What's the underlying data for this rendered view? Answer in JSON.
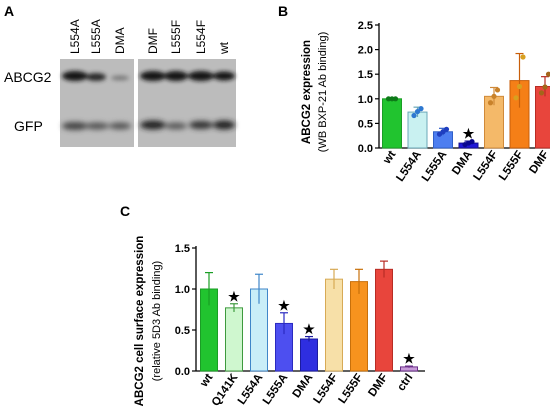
{
  "panels": {
    "a": "A",
    "b": "B",
    "c": "C"
  },
  "blot": {
    "lanes_left": [
      "L554A",
      "L555A",
      "DMA"
    ],
    "lanes_right": [
      "DMF",
      "L555F",
      "L554F",
      "wt"
    ],
    "row_labels": [
      "ABCG2",
      "GFP"
    ]
  },
  "chart_data": [
    {
      "type": "bar",
      "panel": "B",
      "ylabel": "ABCG2 expression",
      "ylabel2": "(WB BXP-21 Ab binding)",
      "categories": [
        "wt",
        "L554A",
        "L555A",
        "DMA",
        "L554F",
        "L555F",
        "DMF"
      ],
      "values": [
        1.0,
        0.73,
        0.33,
        0.1,
        1.05,
        1.37,
        1.25
      ],
      "errors": [
        0.02,
        0.1,
        0.07,
        0.04,
        0.18,
        0.55,
        0.2
      ],
      "points": [
        [
          1.0,
          1.0,
          1.0
        ],
        [
          0.66,
          0.74,
          0.8
        ],
        [
          0.28,
          0.33,
          0.38
        ],
        [
          0.07,
          0.1,
          0.13
        ],
        [
          0.92,
          1.05,
          1.18
        ],
        [
          1.02,
          1.25,
          1.85
        ],
        [
          1.12,
          1.24,
          1.5
        ]
      ],
      "significant": [
        false,
        false,
        false,
        true,
        false,
        false,
        false
      ],
      "ylim": [
        0,
        2.5
      ],
      "yticks": [
        "0.0",
        "0.5",
        "1.0",
        "1.5",
        "2.0",
        "2.5"
      ],
      "colors": [
        "#21c42f",
        "#c9f1f1",
        "#4d7ef0",
        "#2018d8",
        "#f4b969",
        "#f57f17",
        "#e8453c"
      ],
      "edges": [
        "#1a9e25",
        "#6aa8b8",
        "#2f5fc8",
        "#14108f",
        "#d08a3a",
        "#c85e0a",
        "#b82c24"
      ],
      "point_colors": [
        "#0d7a18",
        "#2d78d0",
        "#1f3fc0",
        "#0a088f",
        "#c9822a",
        "#d8a020",
        "#a3651a"
      ]
    },
    {
      "type": "bar",
      "panel": "C",
      "ylabel": "ABCG2 cell surface expression",
      "ylabel2": "(relative 5D3  Ab binding)",
      "categories": [
        "wt",
        "Q141K",
        "L554A",
        "L555A",
        "DMA",
        "L554F",
        "L555F",
        "DMF",
        "ctrl"
      ],
      "values": [
        1.0,
        0.77,
        1.0,
        0.58,
        0.39,
        1.12,
        1.09,
        1.24,
        0.05
      ],
      "errors": [
        0.2,
        0.05,
        0.18,
        0.13,
        0.03,
        0.12,
        0.15,
        0.1,
        0.01
      ],
      "significant": [
        false,
        true,
        false,
        true,
        true,
        false,
        false,
        false,
        true
      ],
      "ylim": [
        0,
        1.5
      ],
      "yticks": [
        "0.0",
        "0.5",
        "1.0",
        "1.5"
      ],
      "colors": [
        "#21c42f",
        "#cff7cf",
        "#c9eef8",
        "#4d4ff0",
        "#2e2ee0",
        "#f7e0a8",
        "#f7931e",
        "#e8453c",
        "#c79ad8"
      ],
      "edges": [
        "#1a9e25",
        "#3e9a3e",
        "#3f86c9",
        "#2a2ac0",
        "#1b1ba0",
        "#d7aa55",
        "#c8700a",
        "#b82c24",
        "#6a2f8a"
      ]
    }
  ],
  "colors": {
    "axis": "#000000",
    "blot_bg": "#bcbcbc",
    "band": "#161616"
  }
}
